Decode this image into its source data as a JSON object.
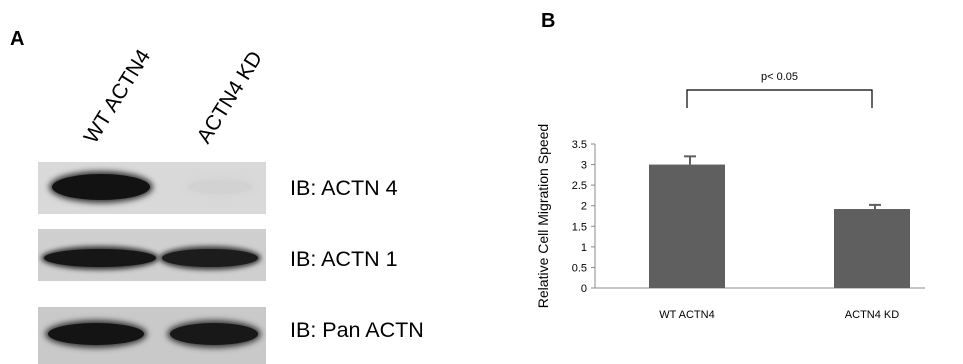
{
  "panel_a": {
    "label": "A",
    "lanes": [
      "WT ACTN4",
      "ACTN4 KD"
    ],
    "blots": [
      {
        "label": "IB: ACTN 4"
      },
      {
        "label": "IB: ACTN 1"
      },
      {
        "label": "IB: Pan ACTN"
      }
    ]
  },
  "panel_b": {
    "label": "B"
  },
  "chart_data": {
    "type": "bar",
    "categories": [
      "WT ACTN4",
      "ACTN4 KD"
    ],
    "values": [
      3.0,
      1.92
    ],
    "errors": [
      0.2,
      0.1
    ],
    "ylabel": "Relative Cell Migration Speed",
    "xlabel": "",
    "title": "",
    "ylim": [
      0,
      3.5
    ],
    "yticks": [
      "0",
      "0.5",
      "1",
      "1.5",
      "2",
      "2.5",
      "3",
      "3.5"
    ],
    "annotation": "p< 0.05",
    "bar_color": "#5f5f5f",
    "grid": false
  }
}
